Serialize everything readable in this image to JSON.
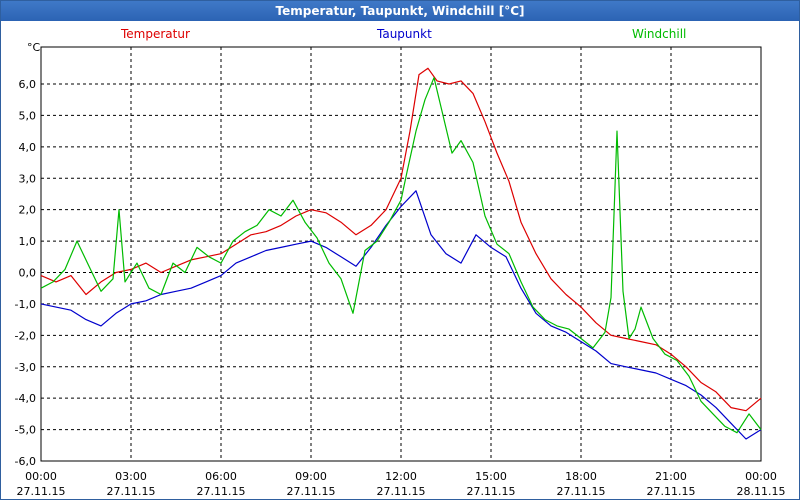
{
  "window": {
    "title": "Temperatur, Taupunkt, Windchill [°C]"
  },
  "chart_data": {
    "type": "line",
    "title": "Temperatur, Taupunkt, Windchill [°C]",
    "ylabel": "°C",
    "ylim": [
      -6.0,
      7.0
    ],
    "xlim": [
      0,
      24
    ],
    "grid": true,
    "y_ticks": [
      "6,0",
      "5,0",
      "4,0",
      "3,0",
      "2,0",
      "1,0",
      "0,0",
      "-1,0",
      "-2,0",
      "-3,0",
      "-4,0",
      "-5,0",
      "-6,0"
    ],
    "y_tick_values": [
      6,
      5,
      4,
      3,
      2,
      1,
      0,
      -1,
      -2,
      -3,
      -4,
      -5,
      -6
    ],
    "x_ticks": [
      {
        "time": "00:00",
        "date": "27.11.15",
        "hour": 0
      },
      {
        "time": "03:00",
        "date": "27.11.15",
        "hour": 3
      },
      {
        "time": "06:00",
        "date": "27.11.15",
        "hour": 6
      },
      {
        "time": "09:00",
        "date": "27.11.15",
        "hour": 9
      },
      {
        "time": "12:00",
        "date": "27.11.15",
        "hour": 12
      },
      {
        "time": "15:00",
        "date": "27.11.15",
        "hour": 15
      },
      {
        "time": "18:00",
        "date": "27.11.15",
        "hour": 18
      },
      {
        "time": "21:00",
        "date": "27.11.15",
        "hour": 21
      },
      {
        "time": "00:00",
        "date": "28.11.15",
        "hour": 24
      }
    ],
    "series": [
      {
        "name": "Temperatur",
        "color": "#dd0000",
        "x": [
          0,
          0.5,
          1,
          1.5,
          2,
          2.5,
          3,
          3.5,
          4,
          4.5,
          5,
          5.5,
          6,
          6.5,
          7,
          7.5,
          8,
          8.5,
          9,
          9.5,
          10,
          10.5,
          11,
          11.5,
          12,
          12.3,
          12.6,
          12.9,
          13.2,
          13.6,
          14,
          14.4,
          14.8,
          15.2,
          15.6,
          16,
          16.5,
          17,
          17.5,
          18,
          18.5,
          19,
          19.5,
          20,
          20.5,
          21,
          21.5,
          22,
          22.5,
          23,
          23.5,
          24
        ],
        "y": [
          -0.1,
          -0.3,
          -0.1,
          -0.7,
          -0.3,
          0.0,
          0.1,
          0.3,
          0.0,
          0.2,
          0.4,
          0.5,
          0.6,
          0.9,
          1.2,
          1.3,
          1.5,
          1.8,
          2.0,
          1.9,
          1.6,
          1.2,
          1.5,
          2.0,
          3.0,
          4.5,
          6.3,
          6.5,
          6.1,
          6.0,
          6.1,
          5.7,
          4.8,
          3.8,
          2.9,
          1.6,
          0.6,
          -0.2,
          -0.7,
          -1.1,
          -1.6,
          -2.0,
          -2.1,
          -2.2,
          -2.3,
          -2.6,
          -3.0,
          -3.5,
          -3.8,
          -4.3,
          -4.4,
          -4.0
        ]
      },
      {
        "name": "Taupunkt",
        "color": "#0000cc",
        "x": [
          0,
          0.5,
          1,
          1.5,
          2,
          2.5,
          3,
          3.5,
          4,
          4.5,
          5,
          5.5,
          6,
          6.5,
          7,
          7.5,
          8,
          8.5,
          9,
          9.5,
          10,
          10.5,
          11,
          11.5,
          12,
          12.5,
          13,
          13.5,
          14,
          14.5,
          15,
          15.5,
          16,
          16.5,
          17,
          17.5,
          18,
          18.5,
          19,
          19.5,
          20,
          20.5,
          21,
          21.5,
          22,
          22.5,
          23,
          23.5,
          24
        ],
        "y": [
          -1.0,
          -1.1,
          -1.2,
          -1.5,
          -1.7,
          -1.3,
          -1.0,
          -0.9,
          -0.7,
          -0.6,
          -0.5,
          -0.3,
          -0.1,
          0.3,
          0.5,
          0.7,
          0.8,
          0.9,
          1.0,
          0.8,
          0.5,
          0.2,
          0.8,
          1.5,
          2.1,
          2.6,
          1.2,
          0.6,
          0.3,
          1.2,
          0.8,
          0.5,
          -0.5,
          -1.3,
          -1.7,
          -1.9,
          -2.2,
          -2.5,
          -2.9,
          -3.0,
          -3.1,
          -3.2,
          -3.4,
          -3.6,
          -3.9,
          -4.3,
          -4.8,
          -5.3,
          -5.0
        ]
      },
      {
        "name": "Windchill",
        "color": "#00bb00",
        "x": [
          0,
          0.4,
          0.8,
          1.2,
          1.6,
          2,
          2.4,
          2.6,
          2.8,
          3.2,
          3.6,
          4,
          4.4,
          4.8,
          5.2,
          5.6,
          6,
          6.4,
          6.8,
          7.2,
          7.6,
          8,
          8.4,
          8.8,
          9.2,
          9.6,
          10,
          10.4,
          10.8,
          11.2,
          11.6,
          12,
          12.2,
          12.5,
          12.8,
          13.1,
          13.4,
          13.7,
          14,
          14.4,
          14.8,
          15.2,
          15.6,
          16,
          16.4,
          16.8,
          17.2,
          17.6,
          18,
          18.4,
          18.8,
          19.0,
          19.2,
          19.4,
          19.6,
          19.8,
          20,
          20.4,
          20.8,
          21.2,
          21.6,
          22,
          22.4,
          22.8,
          23.2,
          23.6,
          24
        ],
        "y": [
          -0.5,
          -0.3,
          0.1,
          1.0,
          0.2,
          -0.6,
          -0.2,
          2.0,
          -0.3,
          0.3,
          -0.5,
          -0.7,
          0.3,
          0.0,
          0.8,
          0.5,
          0.3,
          1.0,
          1.3,
          1.5,
          2.0,
          1.8,
          2.3,
          1.6,
          1.1,
          0.3,
          -0.2,
          -1.3,
          0.7,
          1.0,
          1.6,
          2.3,
          3.2,
          4.5,
          5.5,
          6.2,
          5.0,
          3.8,
          4.2,
          3.5,
          1.8,
          0.9,
          0.6,
          -0.3,
          -1.1,
          -1.5,
          -1.7,
          -1.8,
          -2.1,
          -2.4,
          -1.9,
          -0.8,
          4.5,
          -0.6,
          -2.1,
          -1.8,
          -1.1,
          -2.1,
          -2.6,
          -2.8,
          -3.3,
          -4.1,
          -4.5,
          -4.9,
          -5.1,
          -4.5,
          -5.0
        ]
      }
    ]
  }
}
